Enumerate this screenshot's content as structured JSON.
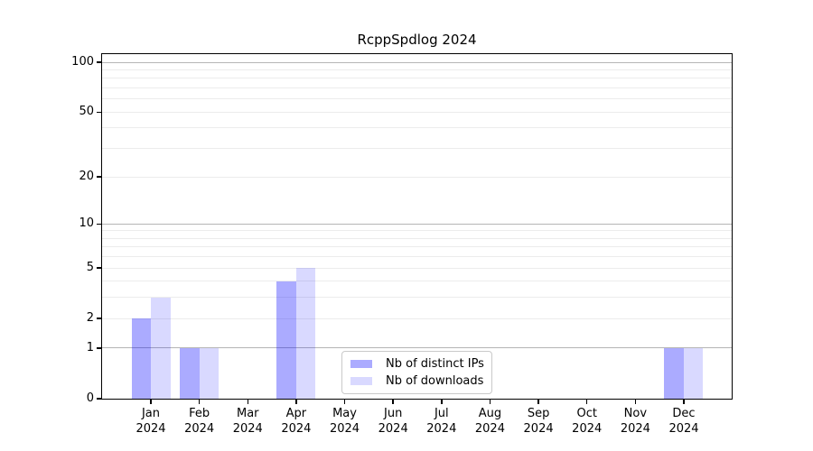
{
  "figure": {
    "title": "RcppSpdlog 2024"
  },
  "chart_data": {
    "type": "bar",
    "title": "RcppSpdlog 2024",
    "x": {
      "months": [
        "Jan",
        "Feb",
        "Mar",
        "Apr",
        "May",
        "Jun",
        "Jul",
        "Aug",
        "Sep",
        "Oct",
        "Nov",
        "Dec"
      ],
      "year": "2024"
    },
    "series": [
      {
        "name": "Nb of distinct IPs",
        "color": "rgba(0,0,255,0.33)",
        "values": [
          2,
          1,
          0,
          4,
          0,
          0,
          0,
          0,
          0,
          0,
          0,
          1
        ]
      },
      {
        "name": "Nb of downloads",
        "color": "rgba(0,0,255,0.15)",
        "values": [
          3,
          1,
          0,
          5,
          0,
          0,
          0,
          0,
          0,
          0,
          0,
          1
        ]
      }
    ],
    "yscale": "log1p",
    "ylim": [
      0,
      113
    ],
    "yticks": [
      0,
      1,
      2,
      5,
      10,
      20,
      50,
      100
    ],
    "ytick_labels": [
      "0",
      "1",
      "2",
      "5",
      "10",
      "20",
      "50",
      "100"
    ],
    "gridlines": {
      "major": [
        1,
        10,
        100
      ],
      "minor": [
        2,
        3,
        4,
        5,
        6,
        7,
        8,
        9,
        20,
        30,
        40,
        50,
        60,
        70,
        80,
        90
      ]
    },
    "grid_colors": {
      "major": "#b5b5b5",
      "minor": "#ececec"
    },
    "legend": {
      "location": "lower center"
    }
  }
}
